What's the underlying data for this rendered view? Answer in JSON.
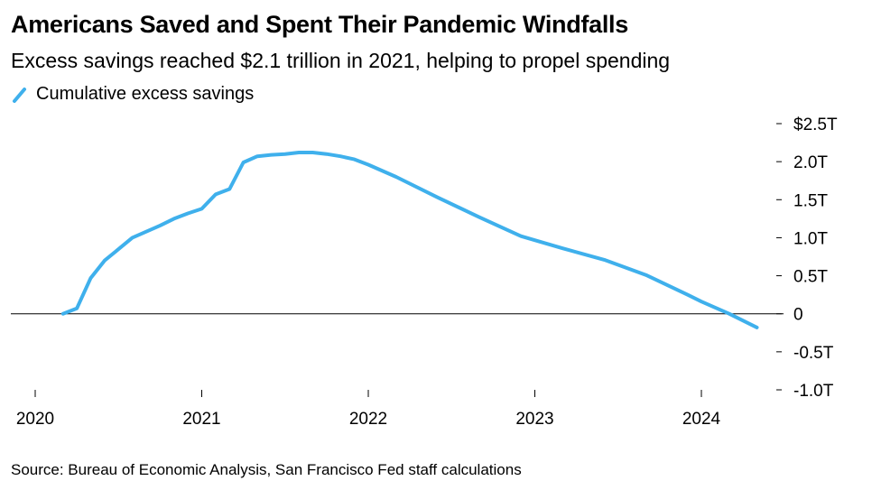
{
  "title": "Americans Saved and Spent Their Pandemic Windfalls",
  "subtitle": "Excess savings reached $2.1 trillion in 2021, helping to propel spending",
  "source": "Source: Bureau of Economic Analysis, San Francisco Fed staff calculations",
  "chart_data": {
    "type": "line",
    "title": "Americans Saved and Spent Their Pandemic Windfalls",
    "subtitle": "Excess savings reached $2.1 trillion in 2021, helping to propel spending",
    "xlabel": "",
    "ylabel": "",
    "ylim": [
      -1.0,
      2.5
    ],
    "xlim": [
      "2020-01-01",
      "2024-07-01"
    ],
    "grid": false,
    "legend_position": "top-left",
    "y_ticks": [
      {
        "value": 2.5,
        "label": "$2.5T"
      },
      {
        "value": 2.0,
        "label": "2.0T"
      },
      {
        "value": 1.5,
        "label": "1.5T"
      },
      {
        "value": 1.0,
        "label": "1.0T"
      },
      {
        "value": 0.5,
        "label": "0.5T"
      },
      {
        "value": 0,
        "label": "0"
      },
      {
        "value": -0.5,
        "label": "-0.5T"
      },
      {
        "value": -1.0,
        "label": "-1.0T"
      }
    ],
    "x_ticks": [
      {
        "value": "2020-01-01",
        "label": "2020"
      },
      {
        "value": "2021-01-01",
        "label": "2021"
      },
      {
        "value": "2022-01-01",
        "label": "2022"
      },
      {
        "value": "2023-01-01",
        "label": "2023"
      },
      {
        "value": "2024-01-01",
        "label": "2024"
      }
    ],
    "series": [
      {
        "name": "Cumulative excess savings",
        "color": "#3fb0ec",
        "points": [
          {
            "x": "2020-03-01",
            "y": 0.0
          },
          {
            "x": "2020-04-01",
            "y": 0.07
          },
          {
            "x": "2020-05-01",
            "y": 0.47
          },
          {
            "x": "2020-06-01",
            "y": 0.7
          },
          {
            "x": "2020-07-01",
            "y": 0.85
          },
          {
            "x": "2020-08-01",
            "y": 1.0
          },
          {
            "x": "2020-09-01",
            "y": 1.08
          },
          {
            "x": "2020-10-01",
            "y": 1.16
          },
          {
            "x": "2020-11-01",
            "y": 1.25
          },
          {
            "x": "2020-12-01",
            "y": 1.32
          },
          {
            "x": "2021-01-01",
            "y": 1.38
          },
          {
            "x": "2021-02-01",
            "y": 1.57
          },
          {
            "x": "2021-03-01",
            "y": 1.64
          },
          {
            "x": "2021-04-01",
            "y": 1.99
          },
          {
            "x": "2021-05-01",
            "y": 2.07
          },
          {
            "x": "2021-06-01",
            "y": 2.09
          },
          {
            "x": "2021-07-01",
            "y": 2.1
          },
          {
            "x": "2021-08-01",
            "y": 2.12
          },
          {
            "x": "2021-09-01",
            "y": 2.12
          },
          {
            "x": "2021-10-01",
            "y": 2.1
          },
          {
            "x": "2021-11-01",
            "y": 2.07
          },
          {
            "x": "2021-12-01",
            "y": 2.03
          },
          {
            "x": "2022-01-01",
            "y": 1.96
          },
          {
            "x": "2022-03-01",
            "y": 1.8
          },
          {
            "x": "2022-06-01",
            "y": 1.53
          },
          {
            "x": "2022-09-01",
            "y": 1.27
          },
          {
            "x": "2022-12-01",
            "y": 1.02
          },
          {
            "x": "2023-03-01",
            "y": 0.86
          },
          {
            "x": "2023-06-01",
            "y": 0.71
          },
          {
            "x": "2023-09-01",
            "y": 0.51
          },
          {
            "x": "2023-12-01",
            "y": 0.25
          },
          {
            "x": "2024-01-01",
            "y": 0.16
          },
          {
            "x": "2024-03-01",
            "y": 0.0
          },
          {
            "x": "2024-05-01",
            "y": -0.18
          }
        ]
      }
    ]
  }
}
